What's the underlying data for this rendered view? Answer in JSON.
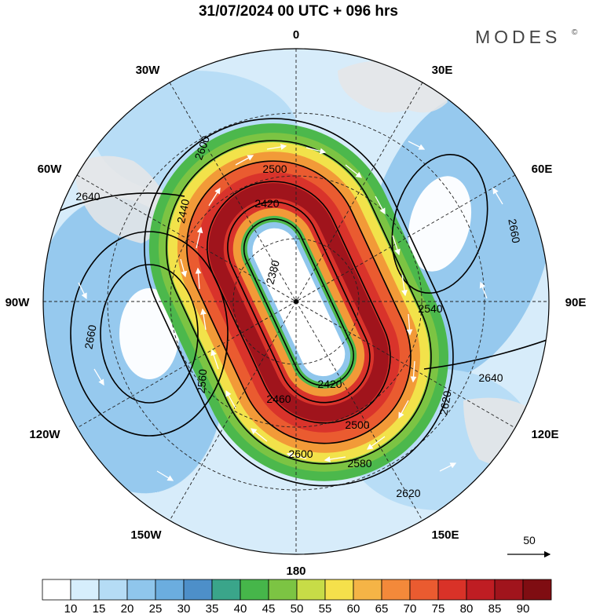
{
  "header": {
    "title": "31/07/2024  00 UTC  + 096 hrs",
    "brand": "MODES",
    "brand_mark": "©"
  },
  "map": {
    "projection": "polar-stereographic-south",
    "longitude_labels": [
      "0",
      "30E",
      "60E",
      "90E",
      "120E",
      "150E",
      "180",
      "150W",
      "120W",
      "90W",
      "60W",
      "30W"
    ],
    "contour_labels": [
      "2420",
      "2500",
      "2580",
      "2600",
      "2620",
      "2640",
      "2660",
      "2380",
      "2440",
      "2460",
      "2540",
      "2560"
    ],
    "wind_colors": {
      "low": "#bfe3fa",
      "mid": "#6fb8e6",
      "green": "#4cb84c",
      "yellow": "#f2e24a",
      "orange": "#f29a38",
      "red": "#d9332b",
      "dark_red": "#8e1417"
    },
    "vector_reference": {
      "value": "50"
    }
  },
  "colorbar": {
    "ticks": [
      "10",
      "15",
      "20",
      "25",
      "30",
      "35",
      "40",
      "45",
      "50",
      "55",
      "60",
      "65",
      "70",
      "75",
      "80",
      "85",
      "90"
    ],
    "colors": [
      "#ffffff",
      "#d6eefc",
      "#b5dcf5",
      "#8fc6ec",
      "#6baddf",
      "#4d8fc9",
      "#3aa58a",
      "#46b64a",
      "#7cc443",
      "#c7dc47",
      "#f5e04b",
      "#f5b446",
      "#f3893a",
      "#ea5b30",
      "#d93228",
      "#bf1d23",
      "#a0141c",
      "#7f0d12"
    ]
  }
}
